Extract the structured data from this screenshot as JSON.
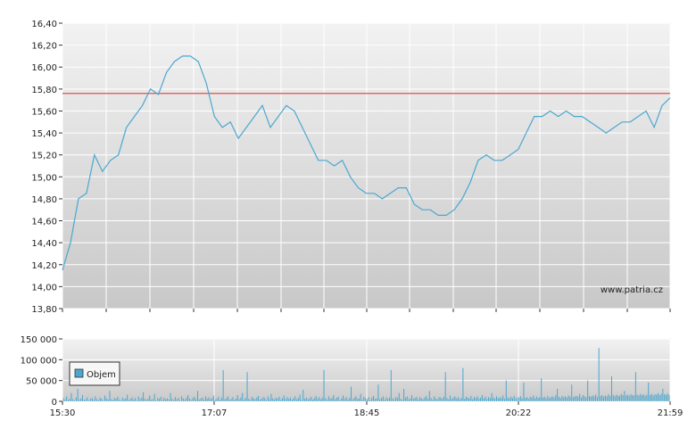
{
  "chart_data": [
    {
      "type": "line",
      "title": "",
      "watermark": "www.patria.cz",
      "ylim": [
        13.8,
        16.4
      ],
      "yticks": [
        "16,40",
        "16,20",
        "16,00",
        "15,80",
        "15,60",
        "15,40",
        "15,20",
        "15,00",
        "14,80",
        "14,60",
        "14,40",
        "14,20",
        "14,00",
        "13,80"
      ],
      "reference_line": 15.76,
      "reference_color": "#e05050",
      "line_color": "#4aa8d0",
      "grid": true,
      "series": [
        {
          "points": [
            [
              0,
              14.15
            ],
            [
              1,
              14.4
            ],
            [
              2,
              14.8
            ],
            [
              3,
              14.85
            ],
            [
              4,
              15.2
            ],
            [
              5,
              15.05
            ],
            [
              6,
              15.15
            ],
            [
              7,
              15.2
            ],
            [
              8,
              15.45
            ],
            [
              9,
              15.55
            ],
            [
              10,
              15.65
            ],
            [
              11,
              15.8
            ],
            [
              12,
              15.75
            ],
            [
              13,
              15.95
            ],
            [
              14,
              16.05
            ],
            [
              15,
              16.1
            ],
            [
              16,
              16.1
            ],
            [
              17,
              16.05
            ],
            [
              18,
              15.85
            ],
            [
              19,
              15.55
            ],
            [
              20,
              15.45
            ],
            [
              21,
              15.5
            ],
            [
              22,
              15.35
            ],
            [
              23,
              15.45
            ],
            [
              24,
              15.55
            ],
            [
              25,
              15.65
            ],
            [
              26,
              15.45
            ],
            [
              27,
              15.55
            ],
            [
              28,
              15.65
            ],
            [
              29,
              15.6
            ],
            [
              30,
              15.45
            ],
            [
              31,
              15.3
            ],
            [
              32,
              15.15
            ],
            [
              33,
              15.15
            ],
            [
              34,
              15.1
            ],
            [
              35,
              15.15
            ],
            [
              36,
              15.0
            ],
            [
              37,
              14.9
            ],
            [
              38,
              14.85
            ],
            [
              39,
              14.85
            ],
            [
              40,
              14.8
            ],
            [
              41,
              14.85
            ],
            [
              42,
              14.9
            ],
            [
              43,
              14.9
            ],
            [
              44,
              14.75
            ],
            [
              45,
              14.7
            ],
            [
              46,
              14.7
            ],
            [
              47,
              14.65
            ],
            [
              48,
              14.65
            ],
            [
              49,
              14.7
            ],
            [
              50,
              14.8
            ],
            [
              51,
              14.95
            ],
            [
              52,
              15.15
            ],
            [
              53,
              15.2
            ],
            [
              54,
              15.15
            ],
            [
              55,
              15.15
            ],
            [
              56,
              15.2
            ],
            [
              57,
              15.25
            ],
            [
              58,
              15.4
            ],
            [
              59,
              15.55
            ],
            [
              60,
              15.55
            ],
            [
              61,
              15.6
            ],
            [
              62,
              15.55
            ],
            [
              63,
              15.6
            ],
            [
              64,
              15.55
            ],
            [
              65,
              15.55
            ],
            [
              66,
              15.5
            ],
            [
              67,
              15.45
            ],
            [
              68,
              15.4
            ],
            [
              69,
              15.45
            ],
            [
              70,
              15.5
            ],
            [
              71,
              15.5
            ],
            [
              72,
              15.55
            ],
            [
              73,
              15.6
            ],
            [
              74,
              15.45
            ],
            [
              75,
              15.65
            ],
            [
              76,
              15.72
            ]
          ]
        }
      ]
    },
    {
      "type": "bar",
      "title": "",
      "ylim": [
        0,
        150000
      ],
      "yticks": [
        "150 000",
        "100 000",
        "50 000",
        "0"
      ],
      "legend": "Objem",
      "legend_position": "left",
      "bar_color": "#4aa8d0",
      "x_labels": [
        "15:30",
        "17:07",
        "18:45",
        "20:22",
        "21:59"
      ],
      "grid": true,
      "series": [
        {
          "name": "Objem",
          "values": [
            8000,
            4000,
            12000,
            3000,
            6000,
            20000,
            5000,
            2000,
            9000,
            30000,
            4000,
            7000,
            15000,
            3000,
            5000,
            10000,
            2000,
            6000,
            8000,
            4000,
            12000,
            5000,
            3000,
            9000,
            6000,
            2000,
            14000,
            7000,
            4000,
            25000,
            5000,
            3000,
            8000,
            6000,
            11000,
            4000,
            2000,
            9000,
            5000,
            7000,
            16000,
            3000,
            6000,
            10000,
            4000,
            8000,
            2000,
            12000,
            5000,
            9000,
            22000,
            6000,
            3000,
            7000,
            14000,
            4000,
            5000,
            18000,
            2000,
            8000,
            6000,
            11000,
            3000,
            9000,
            5000,
            7000,
            4000,
            20000,
            6000,
            3000,
            10000,
            5000,
            8000,
            2000,
            12000,
            7000,
            4000,
            9000,
            15000,
            6000,
            3000,
            8000,
            11000,
            5000,
            25000,
            4000,
            7000,
            9000,
            3000,
            12000,
            6000,
            10000,
            5000,
            8000,
            14000,
            4000,
            6000,
            11000,
            3000,
            9000,
            75000,
            5000,
            8000,
            12000,
            4000,
            6000,
            10000,
            3000,
            7000,
            15000,
            5000,
            9000,
            20000,
            4000,
            8000,
            70000,
            6000,
            3000,
            11000,
            7000,
            5000,
            9000,
            13000,
            4000,
            6000,
            10000,
            8000,
            3000,
            12000,
            5000,
            18000,
            7000,
            4000,
            9000,
            6000,
            11000,
            3000,
            8000,
            14000,
            5000,
            10000,
            6000,
            9000,
            4000,
            7000,
            12000,
            5000,
            8000,
            16000,
            3000,
            28000,
            6000,
            9000,
            5000,
            7000,
            11000,
            4000,
            8000,
            13000,
            6000,
            10000,
            5000,
            9000,
            75000,
            7000,
            4000,
            12000,
            6000,
            8000,
            15000,
            5000,
            9000,
            11000,
            3000,
            7000,
            14000,
            6000,
            10000,
            4000,
            8000,
            35000,
            5000,
            9000,
            12000,
            6000,
            7000,
            18000,
            4000,
            11000,
            8000,
            5000,
            10000,
            3000,
            9000,
            13000,
            6000,
            7000,
            40000,
            5000,
            8000,
            12000,
            4000,
            10000,
            6000,
            9000,
            75000,
            7000,
            5000,
            11000,
            8000,
            20000,
            6000,
            4000,
            30000,
            9000,
            12000,
            5000,
            7000,
            15000,
            6000,
            8000,
            11000,
            4000,
            10000,
            7000,
            5000,
            9000,
            13000,
            6000,
            25000,
            8000,
            4000,
            12000,
            7000,
            5000,
            10000,
            9000,
            6000,
            11000,
            70000,
            8000,
            5000,
            14000,
            6000,
            9000,
            12000,
            7000,
            10000,
            5000,
            8000,
            80000,
            6000,
            11000,
            9000,
            7000,
            13000,
            5000,
            10000,
            8000,
            12000,
            6000,
            9000,
            15000,
            7000,
            11000,
            5000,
            10000,
            8000,
            20000,
            9000,
            6000,
            12000,
            7000,
            10000,
            8000,
            14000,
            6000,
            50000,
            9000,
            7000,
            11000,
            8000,
            13000,
            6000,
            10000,
            9000,
            12000,
            7000,
            45000,
            8000,
            10000,
            6000,
            11000,
            9000,
            14000,
            7000,
            12000,
            8000,
            10000,
            55000,
            9000,
            11000,
            7000,
            13000,
            8000,
            10000,
            12000,
            9000,
            15000,
            30000,
            11000,
            8000,
            13000,
            10000,
            12000,
            9000,
            14000,
            11000,
            40000,
            10000,
            12000,
            13000,
            11000,
            18000,
            9000,
            15000,
            12000,
            10000,
            50000,
            13000,
            11000,
            14000,
            12000,
            16000,
            10000,
            128000,
            13000,
            15000,
            11000,
            14000,
            12000,
            17000,
            13000,
            60000,
            15000,
            12000,
            16000,
            14000,
            13000,
            18000,
            15000,
            25000,
            14000,
            16000,
            13000,
            17000,
            15000,
            14000,
            70000,
            16000,
            14000,
            18000,
            15000,
            17000,
            13000,
            16000,
            45000,
            15000,
            18000,
            14000,
            17000,
            16000,
            20000,
            15000,
            18000,
            30000,
            17000,
            16000,
            19000,
            15000
          ]
        }
      ]
    }
  ]
}
